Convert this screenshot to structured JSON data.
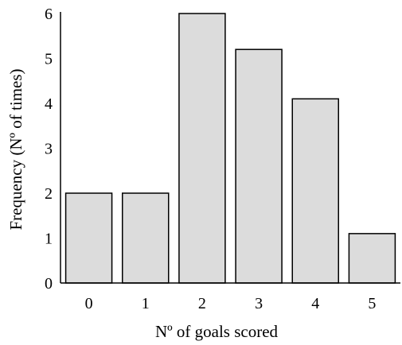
{
  "chart_data": {
    "type": "bar",
    "title": "",
    "xlabel": "Nº of goals scored",
    "ylabel": "Frequency (Nº of times)",
    "categories": [
      "0",
      "1",
      "2",
      "3",
      "4",
      "5"
    ],
    "values": [
      2,
      2,
      6,
      5.2,
      4.1,
      1.1
    ],
    "ylim": [
      0,
      6
    ],
    "yticks": [
      "0",
      "1",
      "2",
      "3",
      "4",
      "5",
      "6"
    ],
    "grid": false,
    "bar_fill": "#dcdcdc",
    "bar_stroke": "#000000"
  }
}
